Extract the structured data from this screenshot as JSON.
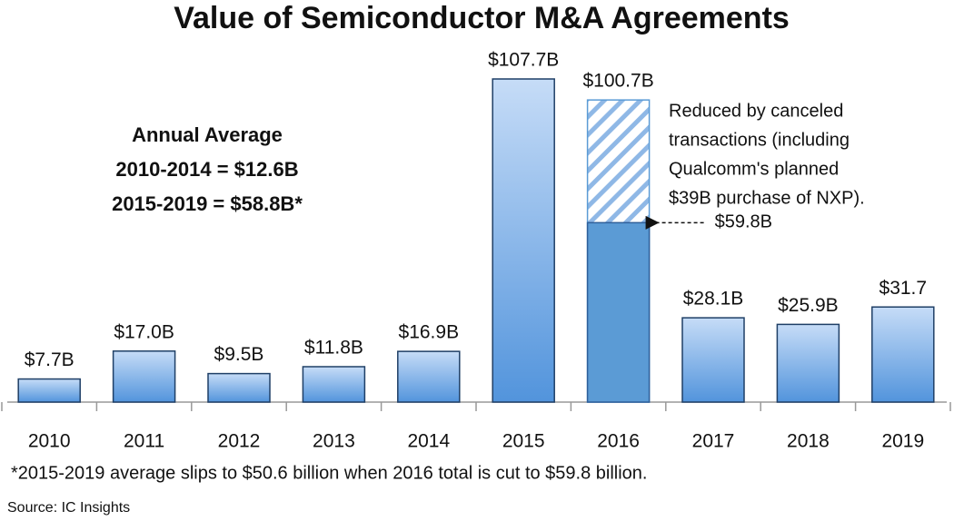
{
  "chart_data": {
    "type": "bar",
    "title": "Value of Semiconductor M&A Agreements",
    "categories": [
      "2010",
      "2011",
      "2012",
      "2013",
      "2014",
      "2015",
      "2016",
      "2017",
      "2018",
      "2019"
    ],
    "values": [
      7.7,
      17.0,
      9.5,
      11.8,
      16.9,
      107.7,
      100.7,
      28.1,
      25.9,
      31.7
    ],
    "value_labels": [
      "$7.7B",
      "$17.0B",
      "$9.5B",
      "$11.8B",
      "$16.9B",
      "$107.7B",
      "$100.7B",
      "$28.1B",
      "$25.9B",
      "$31.7"
    ],
    "color": "#5b9bd5",
    "reduced": {
      "category": "2016",
      "value": 59.8,
      "label": "$59.8B"
    },
    "average_note": [
      "Annual Average",
      "2010-2014 = $12.6B",
      "2015-2019 = $58.8B*"
    ],
    "reduction_note": [
      "Reduced by canceled",
      "transactions (including",
      "Qualcomm's planned",
      "$39B purchase of NXP)."
    ],
    "footnote": "*2015-2019 average slips to $50.6 billion when 2016 total is cut to $59.8 billion.",
    "source": "Source: IC Insights"
  }
}
